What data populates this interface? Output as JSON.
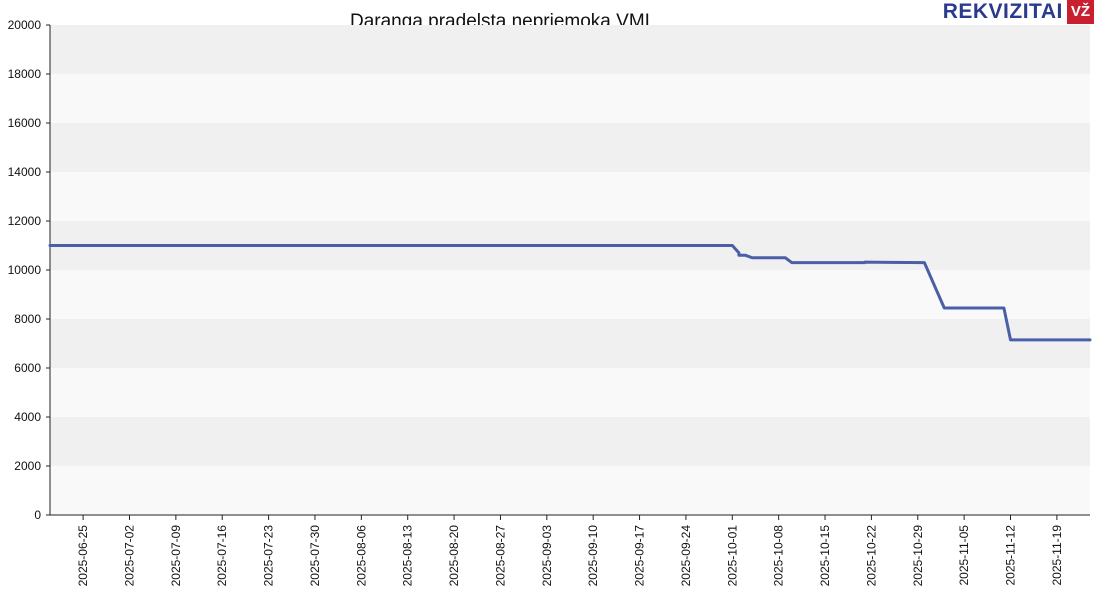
{
  "brand": {
    "logo_text": "REKVIZITAI",
    "logo_badge": "VŽ",
    "accent": "#2a3a8c",
    "badge_color": "#c8202e"
  },
  "chart_data": {
    "type": "line",
    "title": "Daranga pradelsta nepriemoka VMI",
    "xlabel": "",
    "ylabel": "",
    "ylim": [
      0,
      20000
    ],
    "y_ticks": [
      0,
      2000,
      4000,
      6000,
      8000,
      10000,
      12000,
      14000,
      16000,
      18000,
      20000
    ],
    "x_range": [
      "2025-06-20",
      "2025-11-24"
    ],
    "x_ticks": [
      "2025-06-25",
      "2025-07-02",
      "2025-07-09",
      "2025-07-16",
      "2025-07-23",
      "2025-07-30",
      "2025-08-06",
      "2025-08-13",
      "2025-08-20",
      "2025-08-27",
      "2025-09-03",
      "2025-09-10",
      "2025-09-17",
      "2025-09-24",
      "2025-10-01",
      "2025-10-08",
      "2025-10-15",
      "2025-10-22",
      "2025-10-29",
      "2025-11-05",
      "2025-11-12",
      "2025-11-19"
    ],
    "grid": "horizontal bands",
    "line_color": "#4a5fa8",
    "series": [
      {
        "x": [
          "2025-06-20",
          "2025-10-01",
          "2025-10-01",
          "2025-10-02",
          "2025-10-02",
          "2025-10-03",
          "2025-10-04",
          "2025-10-09",
          "2025-10-10",
          "2025-10-21",
          "2025-10-21",
          "2025-10-30",
          "2025-11-02",
          "2025-11-11",
          "2025-11-12",
          "2025-11-24"
        ],
        "y": [
          11000,
          11000,
          11000,
          10700,
          10600,
          10600,
          10500,
          10500,
          10300,
          10300,
          10320,
          10300,
          8450,
          8450,
          7150,
          7150
        ]
      }
    ]
  }
}
